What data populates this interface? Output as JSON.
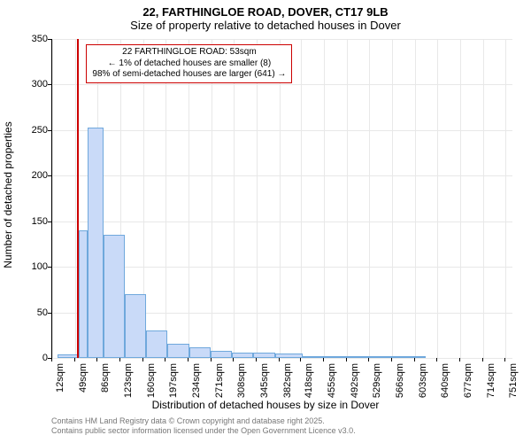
{
  "title_main": "22, FARTHINGLOE ROAD, DOVER, CT17 9LB",
  "title_sub": "Size of property relative to detached houses in Dover",
  "ylabel": "Number of detached properties",
  "xlabel": "Distribution of detached houses by size in Dover",
  "chart": {
    "type": "histogram",
    "ylim": [
      0,
      350
    ],
    "yticks": [
      0,
      50,
      100,
      150,
      200,
      250,
      300,
      350
    ],
    "xtick_labels": [
      "12sqm",
      "49sqm",
      "86sqm",
      "123sqm",
      "160sqm",
      "197sqm",
      "234sqm",
      "271sqm",
      "308sqm",
      "345sqm",
      "382sqm",
      "418sqm",
      "455sqm",
      "492sqm",
      "529sqm",
      "566sqm",
      "603sqm",
      "640sqm",
      "677sqm",
      "714sqm",
      "751sqm"
    ],
    "xtick_values": [
      12,
      49,
      86,
      123,
      160,
      197,
      234,
      271,
      308,
      345,
      382,
      418,
      455,
      492,
      529,
      566,
      603,
      640,
      677,
      714,
      751
    ],
    "x_range": [
      12,
      762
    ],
    "bar_color": "#c9daf8",
    "bar_border": "#6fa8dc",
    "grid_color": "#e8e8e8",
    "marker_color": "#cc0000",
    "marker_x": 53,
    "bars": [
      {
        "x0": 20,
        "x1": 55,
        "y": 4
      },
      {
        "x0": 55,
        "x1": 70,
        "y": 140
      },
      {
        "x0": 70,
        "x1": 95,
        "y": 253
      },
      {
        "x0": 95,
        "x1": 130,
        "y": 135
      },
      {
        "x0": 130,
        "x1": 165,
        "y": 70
      },
      {
        "x0": 165,
        "x1": 200,
        "y": 30
      },
      {
        "x0": 200,
        "x1": 235,
        "y": 16
      },
      {
        "x0": 235,
        "x1": 270,
        "y": 12
      },
      {
        "x0": 270,
        "x1": 305,
        "y": 8
      },
      {
        "x0": 305,
        "x1": 340,
        "y": 6
      },
      {
        "x0": 340,
        "x1": 375,
        "y": 6
      },
      {
        "x0": 375,
        "x1": 420,
        "y": 5
      },
      {
        "x0": 420,
        "x1": 470,
        "y": 1
      },
      {
        "x0": 470,
        "x1": 540,
        "y": 2
      },
      {
        "x0": 540,
        "x1": 620,
        "y": 2
      }
    ]
  },
  "annotation": {
    "line1": "22 FARTHINGLOE ROAD: 53sqm",
    "line2": "← 1% of detached houses are smaller (8)",
    "line3": "98% of semi-detached houses are larger (641) →"
  },
  "footer1": "Contains HM Land Registry data © Crown copyright and database right 2025.",
  "footer2": "Contains public sector information licensed under the Open Government Licence v3.0."
}
